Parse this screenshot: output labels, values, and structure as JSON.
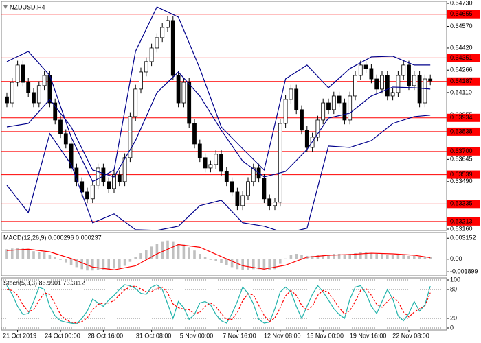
{
  "chart_data": [
    {
      "type": "candlestick",
      "title": "NZDUSD,H4",
      "categories": [
        null,
        null,
        "21 Oct 2019",
        null,
        null,
        null,
        null,
        null,
        null,
        null,
        "24 Oct 00:00",
        null,
        null,
        null,
        null,
        null,
        null,
        null,
        "28 Oct 16:00",
        null,
        null,
        null,
        null,
        null,
        null,
        null,
        null,
        "31 Oct 08:00",
        null,
        null,
        null,
        null,
        null,
        null,
        null,
        "5 Nov 00:00",
        null,
        null,
        null,
        null,
        null,
        null,
        null,
        "7 Nov 16:00",
        null,
        null,
        null,
        null,
        null,
        null,
        null,
        "12 Nov 08:00",
        null,
        null,
        null,
        null,
        null,
        null,
        null,
        "15 Nov 00:00",
        null,
        null,
        null,
        null,
        null,
        null,
        null,
        "19 Nov 16:00",
        null,
        null,
        null,
        null,
        null,
        null,
        null,
        "22 Nov 08:00",
        null,
        null,
        null,
        null
      ],
      "open": [
        0.6408,
        0.64038,
        0.64181,
        0.64301,
        0.64181,
        0.6411,
        0.64038,
        0.64158,
        0.64229,
        0.64038,
        0.63919,
        0.63824,
        0.63752,
        0.63585,
        0.6349,
        0.63418,
        0.63371,
        0.63466,
        0.63585,
        0.6349,
        0.63442,
        0.63538,
        0.6349,
        0.63657,
        0.63943,
        0.64134,
        0.64253,
        0.64325,
        0.6442,
        0.64492,
        0.64563,
        0.64611,
        0.64229,
        0.64038,
        0.64181,
        0.63895,
        0.63752,
        0.63657,
        0.63585,
        0.63609,
        0.63681,
        0.63561,
        0.6349,
        0.63418,
        0.63323,
        0.63394,
        0.6349,
        0.63585,
        0.63514,
        0.63371,
        0.63323,
        0.63347,
        0.63895,
        0.64062,
        0.64134,
        0.63991,
        0.63848,
        0.63728,
        0.638,
        0.63919,
        0.64038,
        0.63991,
        0.64086,
        0.64038,
        0.63919,
        0.64086,
        0.64229,
        0.64301,
        0.64277,
        0.64205,
        0.64134,
        0.64229,
        0.64086,
        0.6411,
        0.64229,
        0.64301,
        0.64158,
        0.64229,
        0.64038,
        0.64205
      ],
      "high": [
        0.6411,
        0.64211,
        0.64331,
        0.64331,
        0.64211,
        0.6414,
        0.64188,
        0.64259,
        0.64259,
        0.64068,
        0.63949,
        0.63854,
        0.63782,
        0.63615,
        0.6352,
        0.63448,
        0.63496,
        0.63615,
        0.63615,
        0.6352,
        0.63568,
        0.63568,
        0.63687,
        0.63973,
        0.64164,
        0.64283,
        0.64355,
        0.6445,
        0.64522,
        0.64593,
        0.64641,
        0.64641,
        0.64259,
        0.64211,
        0.64211,
        0.63925,
        0.63782,
        0.63687,
        0.63639,
        0.63711,
        0.63711,
        0.63591,
        0.6352,
        0.63448,
        0.63424,
        0.6352,
        0.63615,
        0.63615,
        0.63544,
        0.63401,
        0.63377,
        0.63925,
        0.64092,
        0.64164,
        0.64164,
        0.64021,
        0.63878,
        0.6383,
        0.63949,
        0.64068,
        0.64068,
        0.64116,
        0.64116,
        0.64068,
        0.64116,
        0.64259,
        0.64331,
        0.64331,
        0.64307,
        0.64235,
        0.64259,
        0.64259,
        0.6414,
        0.64259,
        0.64331,
        0.64331,
        0.64259,
        0.64259,
        0.64235,
        0.64235
      ],
      "low": [
        0.64008,
        0.64008,
        0.64151,
        0.64151,
        0.6408,
        0.64008,
        0.64008,
        0.64128,
        0.64008,
        0.63889,
        0.63794,
        0.63722,
        0.63555,
        0.6346,
        0.63388,
        0.63341,
        0.63341,
        0.63436,
        0.6346,
        0.63412,
        0.63412,
        0.6346,
        0.6346,
        0.63627,
        0.63913,
        0.64104,
        0.64223,
        0.64295,
        0.6439,
        0.64462,
        0.64533,
        0.64199,
        0.64008,
        0.64008,
        0.63865,
        0.63722,
        0.63627,
        0.63555,
        0.63555,
        0.63579,
        0.63531,
        0.6346,
        0.63388,
        0.63293,
        0.63293,
        0.63364,
        0.6346,
        0.63484,
        0.63341,
        0.63293,
        0.63293,
        0.63317,
        0.63865,
        0.64032,
        0.63961,
        0.63818,
        0.63698,
        0.63698,
        0.6377,
        0.63889,
        0.63961,
        0.63961,
        0.64008,
        0.63889,
        0.63889,
        0.64056,
        0.64199,
        0.64247,
        0.64175,
        0.64104,
        0.64104,
        0.64056,
        0.64056,
        0.6408,
        0.64199,
        0.64128,
        0.64128,
        0.64008,
        0.64008,
        0.64161
      ],
      "close": [
        0.64038,
        0.64181,
        0.64301,
        0.64181,
        0.6411,
        0.64038,
        0.64158,
        0.64229,
        0.64038,
        0.63919,
        0.63824,
        0.63752,
        0.63585,
        0.6349,
        0.63418,
        0.63371,
        0.63466,
        0.63585,
        0.6349,
        0.63442,
        0.63538,
        0.6349,
        0.63657,
        0.63943,
        0.64134,
        0.64253,
        0.64325,
        0.6442,
        0.64492,
        0.64563,
        0.64611,
        0.64229,
        0.64038,
        0.64181,
        0.63895,
        0.63752,
        0.63657,
        0.63585,
        0.63609,
        0.63681,
        0.63561,
        0.6349,
        0.63418,
        0.63323,
        0.63394,
        0.6349,
        0.63585,
        0.63514,
        0.63371,
        0.63323,
        0.63347,
        0.63895,
        0.64062,
        0.64134,
        0.63991,
        0.63848,
        0.63728,
        0.638,
        0.63919,
        0.64038,
        0.63991,
        0.64086,
        0.64038,
        0.63919,
        0.64086,
        0.64229,
        0.64301,
        0.64277,
        0.64205,
        0.64134,
        0.64229,
        0.64086,
        0.6411,
        0.64229,
        0.64301,
        0.64158,
        0.64229,
        0.64038,
        0.64205,
        0.64191
      ],
      "bull_color": "#ffffff",
      "bear_color": "#000000",
      "wick_color": "#000000",
      "bands": [
        {
          "color": "#00008b",
          "x": [
            0,
            4,
            8,
            12,
            16,
            20,
            24,
            28,
            32,
            36,
            40,
            44,
            48,
            52,
            56,
            60,
            64,
            68,
            72,
            76,
            79
          ],
          "values": [
            0.64325,
            0.64396,
            0.64229,
            0.638,
            0.6349,
            0.63571,
            0.64396,
            0.64706,
            0.64635,
            0.64277,
            0.63871,
            0.63719,
            0.63571,
            0.64205,
            0.64301,
            0.64143,
            0.64277,
            0.64358,
            0.64363,
            0.64301,
            0.64301
          ]
        },
        {
          "color": "#00008b",
          "x": [
            0,
            4,
            8,
            12,
            16,
            20,
            24,
            28,
            32,
            36,
            40,
            44,
            48,
            52,
            56,
            60,
            64,
            68,
            72,
            76,
            79
          ],
          "values": [
            0.63871,
            0.63895,
            0.64062,
            0.63871,
            0.63571,
            0.63523,
            0.63776,
            0.6411,
            0.64253,
            0.64086,
            0.63848,
            0.63633,
            0.63523,
            0.63561,
            0.63714,
            0.63933,
            0.63967,
            0.64086,
            0.64148,
            0.64143,
            0.64134
          ]
        },
        {
          "color": "#00008b",
          "x": [
            0,
            4,
            8,
            12,
            16,
            20,
            24,
            28,
            32,
            36,
            40,
            44,
            48,
            52,
            56,
            60,
            64,
            68,
            72,
            76,
            79
          ],
          "values": [
            0.63466,
            0.63275,
            0.63824,
            0.63609,
            0.63204,
            0.63266,
            0.63156,
            0.63151,
            0.6318,
            0.63323,
            0.63361,
            0.63204,
            0.6318,
            0.63132,
            0.63166,
            0.63738,
            0.63728,
            0.63776,
            0.63895,
            0.63943,
            0.63953
          ]
        }
      ],
      "levels": [
        0.64655,
        0.64351,
        0.64187,
        0.63934,
        0.63838,
        {
          "value": 0.637,
          "label": "0.63700"
        },
        0.63539,
        0.63335,
        0.63213
      ],
      "level_color": "#ff0000",
      "ylim": [
        0.6316,
        0.6473
      ],
      "yticks": [
        {
          "value": 0.6473,
          "label": "0.64730"
        },
        {
          "value": 0.6457,
          "label": "0.64570"
        },
        {
          "value": 0.6442,
          "label": "0.64420"
        },
        0.64266,
        {
          "value": 0.6411,
          "label": "0.64110"
        },
        0.63955,
        0.63645,
        {
          "value": 0.6349,
          "label": "0.63490"
        },
        {
          "value": 0.6316,
          "label": "0.63160"
        }
      ],
      "grid": false
    },
    {
      "type": "bar",
      "title": "MACD(12,26,9) 0.000296 0.000237",
      "values": [
        0.0015,
        0.0016,
        0.0017,
        0.0016,
        0.0014,
        0.0012,
        0.0011,
        0.001,
        0.0007,
        0.0003,
        -0.0001,
        -0.0005,
        -0.0009,
        -0.0012,
        -0.0015,
        -0.0017,
        -0.0017,
        -0.0016,
        -0.0016,
        -0.0015,
        -0.0014,
        -0.0013,
        -0.001,
        -0.0004,
        0.0003,
        0.0009,
        0.0014,
        0.0019,
        0.0023,
        0.0026,
        0.0028,
        0.0026,
        0.0023,
        0.0022,
        0.0018,
        0.0013,
        0.0008,
        0.0003,
        -0.0001,
        -0.0003,
        -0.0006,
        -0.0009,
        -0.0012,
        -0.0015,
        -0.0016,
        -0.0016,
        -0.0015,
        -0.0015,
        -0.0016,
        -0.0016,
        -0.0015,
        -0.0007,
        0.0001,
        0.0006,
        0.0008,
        0.0007,
        0.0005,
        0.0005,
        0.0006,
        0.0007,
        0.0007,
        0.0008,
        0.0008,
        0.0007,
        0.0008,
        0.0009,
        0.001,
        0.001,
        0.0009,
        0.0008,
        0.0008,
        0.0007,
        0.0006,
        0.0006,
        0.0007,
        0.0005,
        0.0005,
        0.0003,
        0.0003,
        0.000296
      ],
      "color": "#c0c0c0",
      "series": [
        {
          "color": "#ff0000",
          "x": [
            0,
            4,
            8,
            12,
            16,
            20,
            24,
            28,
            32,
            36,
            40,
            44,
            48,
            52,
            56,
            60,
            64,
            68,
            72,
            76,
            79
          ],
          "values": [
            0.0013,
            0.0015,
            0.0011,
            0.0001,
            -0.0012,
            -0.0016,
            -0.001,
            0.0008,
            0.0022,
            0.0018,
            0.0004,
            -0.001,
            -0.0015,
            -0.0009,
            0.0003,
            0.0006,
            0.0007,
            0.0009,
            0.0008,
            0.0006,
            0.000237
          ]
        }
      ],
      "ylim": [
        -0.0025,
        0.0039
      ],
      "yticks": [
        0.003152,
        {
          "value": 0,
          "label": "0.00"
        },
        -0.001899
      ],
      "grid": false
    },
    {
      "type": "line",
      "title": "Stoch(5,3,3) 86.9901 73.3112",
      "series": [
        {
          "color": "#20b2aa",
          "dashed": false,
          "values": [
            88,
            70,
            45,
            28,
            30,
            55,
            85,
            80,
            45,
            25,
            15,
            12,
            10,
            8,
            20,
            35,
            60,
            52,
            45,
            58,
            68,
            80,
            90,
            88,
            82,
            72,
            70,
            85,
            90,
            80,
            50,
            20,
            55,
            42,
            18,
            28,
            52,
            55,
            48,
            28,
            15,
            10,
            30,
            55,
            85,
            72,
            50,
            18,
            10,
            12,
            40,
            75,
            85,
            75,
            45,
            20,
            45,
            70,
            88,
            75,
            58,
            40,
            28,
            20,
            60,
            85,
            88,
            72,
            45,
            30,
            55,
            80,
            60,
            25,
            15,
            30,
            55,
            35,
            48,
            86.9901
          ]
        },
        {
          "color": "#ff0000",
          "dashed": true,
          "values": [
            80,
            78,
            68,
            48,
            34,
            38,
            57,
            73,
            70,
            50,
            28,
            17,
            12,
            10,
            13,
            21,
            38,
            49,
            52,
            52,
            57,
            69,
            79,
            86,
            87,
            81,
            75,
            76,
            82,
            85,
            73,
            50,
            42,
            39,
            38,
            29,
            33,
            45,
            52,
            44,
            30,
            18,
            18,
            32,
            57,
            71,
            69,
            47,
            26,
            13,
            21,
            42,
            67,
            78,
            68,
            47,
            37,
            45,
            68,
            78,
            74,
            58,
            42,
            29,
            36,
            55,
            78,
            82,
            68,
            49,
            43,
            55,
            65,
            55,
            33,
            23,
            33,
            40,
            46,
            73.3112
          ]
        }
      ],
      "ylim": [
        0,
        100
      ],
      "yticks": [
        100,
        80,
        20,
        0
      ],
      "grid": true
    }
  ]
}
